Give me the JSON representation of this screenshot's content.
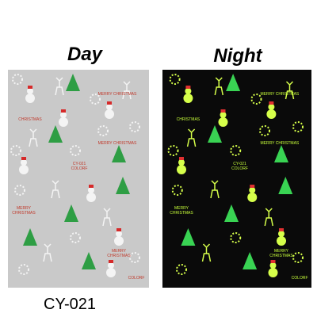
{
  "labels": {
    "day": "Day",
    "night": "Night",
    "code": "CY-021"
  },
  "day_sheet": {
    "texts": [
      "MERRY CHRISTMAS",
      "CHRISTMAS",
      "MERRY CHRISTMAS",
      "CY-021",
      "COLORF",
      "MERRY",
      "CHRISTMAS",
      "MERRY",
      "CHRISTMAS",
      "COLORF"
    ]
  },
  "night_sheet": {
    "texts": [
      "MERRY CHRISTMAS",
      "CHRISTMAS",
      "MERRY CHRISTMAS",
      "CY-021",
      "COLORF",
      "MERRY",
      "CHRISTMAS",
      "MERRY",
      "CHRISTMAS",
      "COLORF"
    ]
  }
}
